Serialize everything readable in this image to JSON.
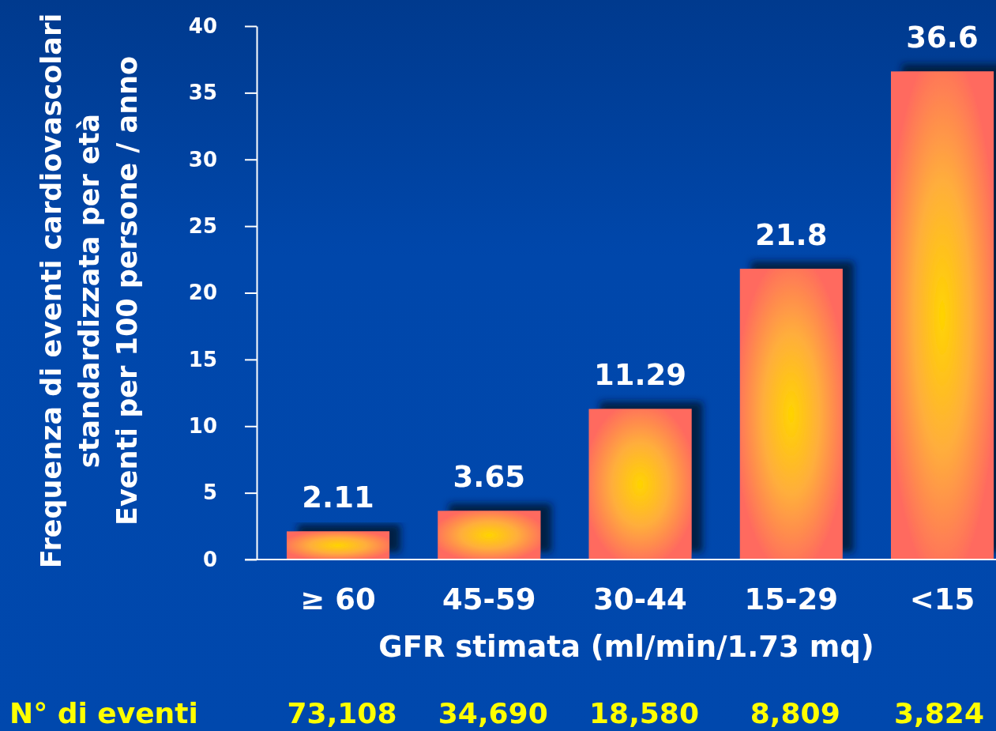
{
  "chart_data": {
    "type": "bar",
    "categories": [
      "≥ 60",
      "45-59",
      "30-44",
      "15-29",
      "<15"
    ],
    "values": [
      2.11,
      3.65,
      11.29,
      21.8,
      36.6
    ],
    "color": "#ff6b5e",
    "ylim": [
      0,
      40
    ],
    "yticks": [
      0,
      5,
      10,
      15,
      20,
      25,
      30,
      35,
      40
    ],
    "data_labels": true,
    "xlabel": "GFR stimata (ml/min/1.73 mq)",
    "ylabel": "Frequenza di eventi cardiovascolari\nstandardizzata per età\nEventi per 100 persone / anno",
    "annotations": [
      "N° di eventi",
      "73,108",
      "34,690",
      "18,580",
      "8,809",
      "3,824"
    ]
  }
}
